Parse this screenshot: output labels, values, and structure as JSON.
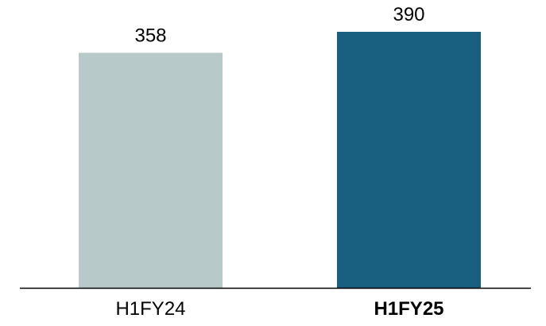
{
  "chart_data": {
    "type": "bar",
    "categories": [
      "H1FY24",
      "H1FY25"
    ],
    "values": [
      358,
      390
    ],
    "value_labels": [
      "358",
      "390"
    ],
    "category_emphasis": [
      false,
      true
    ],
    "colors": [
      "#b8c9c9",
      "#185f80"
    ],
    "axis_line_color": "#000000",
    "ylim": [
      0,
      390
    ],
    "grid": false,
    "title": "",
    "xlabel": "",
    "ylabel": ""
  }
}
